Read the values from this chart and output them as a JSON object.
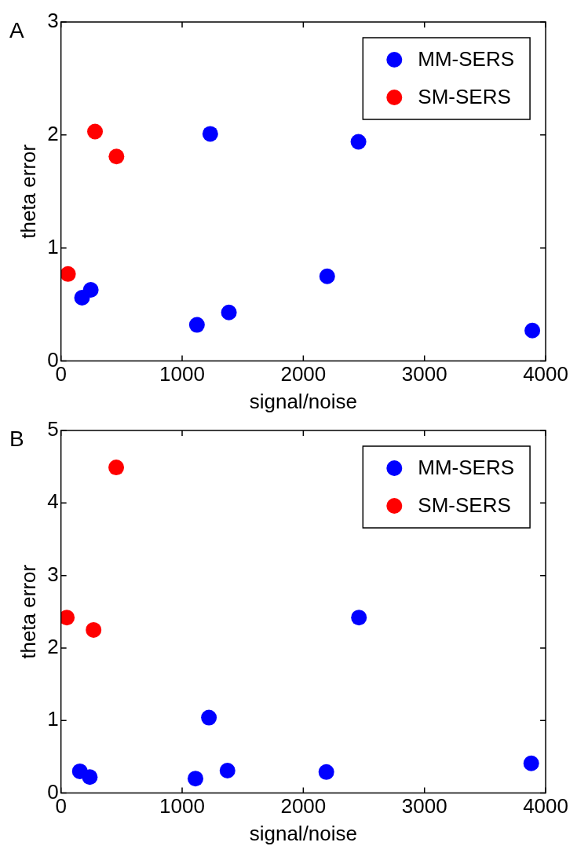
{
  "chart_data": [
    {
      "type": "scatter",
      "xlabel": "signal/noise",
      "ylabel": "theta error",
      "annotations": [
        "A"
      ],
      "xlim": [
        0,
        4000
      ],
      "xticks": [
        0,
        1000,
        2000,
        3000,
        4000
      ],
      "ylim": [
        0,
        3
      ],
      "yticks": [
        0,
        1,
        2,
        3
      ],
      "grid": false,
      "legend": "top right",
      "marker": "circle",
      "series": [
        {
          "name": "MM-SERS",
          "color": "#0000ff",
          "x": [
            1232,
            2455,
            2197,
            174,
            246,
            1122,
            1386,
            3890
          ],
          "values": [
            2.01,
            1.94,
            0.75,
            0.56,
            0.63,
            0.32,
            0.43,
            0.27
          ]
        },
        {
          "name": "SM-SERS",
          "color": "#ff0000",
          "x": [
            281,
            458,
            58
          ],
          "values": [
            2.03,
            1.81,
            0.77
          ]
        }
      ]
    },
    {
      "type": "scatter",
      "xlabel": "signal/noise",
      "ylabel": "theta error",
      "annotations": [
        "B"
      ],
      "xlim": [
        0,
        4000
      ],
      "xticks": [
        0,
        1000,
        2000,
        3000,
        4000
      ],
      "ylim": [
        0,
        5
      ],
      "yticks": [
        0,
        1,
        2,
        3,
        4,
        5
      ],
      "grid": false,
      "legend": "top right",
      "marker": "circle",
      "series": [
        {
          "name": "MM-SERS",
          "color": "#0000ff",
          "x": [
            1221,
            2459,
            156,
            238,
            1110,
            1374,
            2190,
            3881
          ],
          "values": [
            1.04,
            2.42,
            0.3,
            0.22,
            0.2,
            0.31,
            0.29,
            0.41
          ]
        },
        {
          "name": "SM-SERS",
          "color": "#ff0000",
          "x": [
            456,
            48,
            269
          ],
          "values": [
            4.49,
            2.42,
            2.25
          ]
        }
      ]
    }
  ]
}
